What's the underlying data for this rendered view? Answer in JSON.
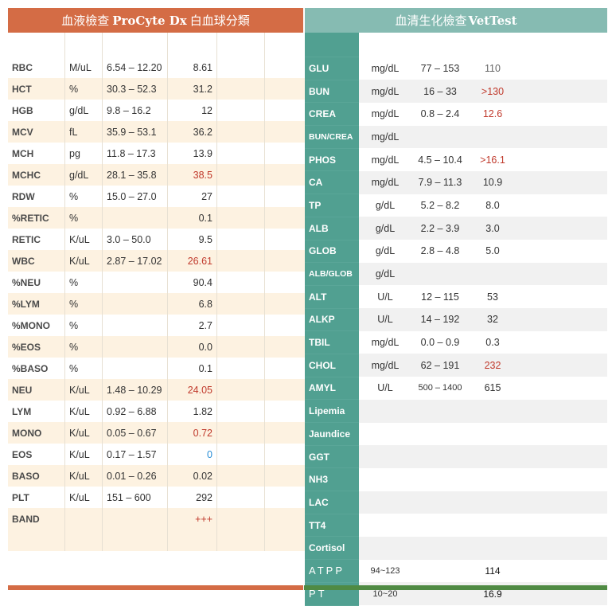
{
  "left": {
    "title_prefix": "血液檢查",
    "title_bold": "ProCyte Dx",
    "title_suffix": "白血球分類",
    "rows": [
      {
        "name": "RBC",
        "unit": "M/uL",
        "ref": "6.54 – 12.20",
        "value": "8.61",
        "flag": ""
      },
      {
        "name": "HCT",
        "unit": "%",
        "ref": "30.3 – 52.3",
        "value": "31.2",
        "flag": ""
      },
      {
        "name": "HGB",
        "unit": "g/dL",
        "ref": "9.8 – 16.2",
        "value": "12",
        "flag": ""
      },
      {
        "name": "MCV",
        "unit": "fL",
        "ref": "35.9 – 53.1",
        "value": "36.2",
        "flag": ""
      },
      {
        "name": "MCH",
        "unit": "pg",
        "ref": "11.8 – 17.3",
        "value": "13.9",
        "flag": ""
      },
      {
        "name": "MCHC",
        "unit": "g/dL",
        "ref": "28.1 – 35.8",
        "value": "38.5",
        "flag": "red"
      },
      {
        "name": "RDW",
        "unit": "%",
        "ref": "15.0 – 27.0",
        "value": "27",
        "flag": ""
      },
      {
        "name": "%RETIC",
        "unit": "%",
        "ref": "",
        "value": "0.1",
        "flag": ""
      },
      {
        "name": "RETIC",
        "unit": "K/uL",
        "ref": "3.0 – 50.0",
        "value": "9.5",
        "flag": ""
      },
      {
        "name": "WBC",
        "unit": "K/uL",
        "ref": "2.87 – 17.02",
        "value": "26.61",
        "flag": "red"
      },
      {
        "name": "%NEU",
        "unit": "%",
        "ref": "",
        "value": "90.4",
        "flag": ""
      },
      {
        "name": "%LYM",
        "unit": "%",
        "ref": "",
        "value": "6.8",
        "flag": ""
      },
      {
        "name": "%MONO",
        "unit": "%",
        "ref": "",
        "value": "2.7",
        "flag": ""
      },
      {
        "name": "%EOS",
        "unit": "%",
        "ref": "",
        "value": "0.0",
        "flag": ""
      },
      {
        "name": "%BASO",
        "unit": "%",
        "ref": "",
        "value": "0.1",
        "flag": ""
      },
      {
        "name": "NEU",
        "unit": "K/uL",
        "ref": "1.48 – 10.29",
        "value": "24.05",
        "flag": "red"
      },
      {
        "name": "LYM",
        "unit": "K/uL",
        "ref": "0.92 – 6.88",
        "value": "1.82",
        "flag": ""
      },
      {
        "name": "MONO",
        "unit": "K/uL",
        "ref": "0.05 – 0.67",
        "value": "0.72",
        "flag": "red"
      },
      {
        "name": "EOS",
        "unit": "K/uL",
        "ref": "0.17 – 1.57",
        "value": "0",
        "flag": "blue"
      },
      {
        "name": "BASO",
        "unit": "K/uL",
        "ref": "0.01 – 0.26",
        "value": "0.02",
        "flag": ""
      },
      {
        "name": "PLT",
        "unit": "K/uL",
        "ref": "151 – 600",
        "value": "292",
        "flag": ""
      },
      {
        "name": "BAND",
        "unit": "",
        "ref": "",
        "value": "+++",
        "flag": "red"
      }
    ]
  },
  "right": {
    "title_prefix": "血清生化檢查",
    "title_bold": "VetTest",
    "rows": [
      {
        "name": "GLU",
        "unit": "mg/dL",
        "ref": "77 – 153",
        "value": "110",
        "flag": "gray",
        "style": ""
      },
      {
        "name": "BUN",
        "unit": "mg/dL",
        "ref": "16 – 33",
        "value": ">130",
        "flag": "red",
        "style": ""
      },
      {
        "name": "CREA",
        "unit": "mg/dL",
        "ref": "0.8 – 2.4",
        "value": "12.6",
        "flag": "red",
        "style": ""
      },
      {
        "name": "BUN/CREA",
        "unit": "mg/dL",
        "ref": "",
        "value": "",
        "flag": "",
        "style": "small"
      },
      {
        "name": "PHOS",
        "unit": "mg/dL",
        "ref": "4.5 – 10.4",
        "value": ">16.1",
        "flag": "red",
        "style": ""
      },
      {
        "name": "CA",
        "unit": "mg/dL",
        "ref": "7.9 – 11.3",
        "value": "10.9",
        "flag": "",
        "style": ""
      },
      {
        "name": "TP",
        "unit": "g/dL",
        "ref": "5.2 – 8.2",
        "value": "8.0",
        "flag": "",
        "style": ""
      },
      {
        "name": "ALB",
        "unit": "g/dL",
        "ref": "2.2 – 3.9",
        "value": "3.0",
        "flag": "",
        "style": ""
      },
      {
        "name": "GLOB",
        "unit": "g/dL",
        "ref": "2.8 – 4.8",
        "value": "5.0",
        "flag": "",
        "style": ""
      },
      {
        "name": "ALB/GLOB",
        "unit": "g/dL",
        "ref": "",
        "value": "",
        "flag": "",
        "style": "small"
      },
      {
        "name": "ALT",
        "unit": "U/L",
        "ref": "12 – 115",
        "value": "53",
        "flag": "",
        "style": ""
      },
      {
        "name": "ALKP",
        "unit": "U/L",
        "ref": "14 – 192",
        "value": "32",
        "flag": "",
        "style": ""
      },
      {
        "name": "TBIL",
        "unit": "mg/dL",
        "ref": "0.0 – 0.9",
        "value": "0.3",
        "flag": "",
        "style": ""
      },
      {
        "name": "CHOL",
        "unit": "mg/dL",
        "ref": "62 – 191",
        "value": "232",
        "flag": "red",
        "style": ""
      },
      {
        "name": "AMYL",
        "unit": "U/L",
        "ref": "500 – 1400",
        "value": "615",
        "flag": "",
        "style": "tinyref"
      },
      {
        "name": "Lipemia",
        "unit": "",
        "ref": "",
        "value": "",
        "flag": "",
        "style": ""
      },
      {
        "name": "Jaundice",
        "unit": "",
        "ref": "",
        "value": "",
        "flag": "",
        "style": ""
      },
      {
        "name": "GGT",
        "unit": "",
        "ref": "",
        "value": "",
        "flag": "",
        "style": ""
      },
      {
        "name": "NH3",
        "unit": "",
        "ref": "",
        "value": "",
        "flag": "",
        "style": ""
      },
      {
        "name": "LAC",
        "unit": "",
        "ref": "",
        "value": "",
        "flag": "",
        "style": ""
      },
      {
        "name": "TT4",
        "unit": "",
        "ref": "",
        "value": "",
        "flag": "",
        "style": ""
      },
      {
        "name": "Cortisol",
        "unit": "",
        "ref": "",
        "value": "",
        "flag": "",
        "style": ""
      },
      {
        "name": "ATPP",
        "unit": "94~123",
        "ref": "",
        "value": "114",
        "flag": "black",
        "style": "spaced"
      },
      {
        "name": "PT",
        "unit": "10~20",
        "ref": "",
        "value": "16.9",
        "flag": "black",
        "style": "spaced"
      }
    ]
  },
  "colors": {
    "left_header": "#d46c45",
    "right_header": "#86bbb2",
    "name_column": "#51a091",
    "high_flag": "#c0392b",
    "low_flag": "#2b8fd6"
  }
}
